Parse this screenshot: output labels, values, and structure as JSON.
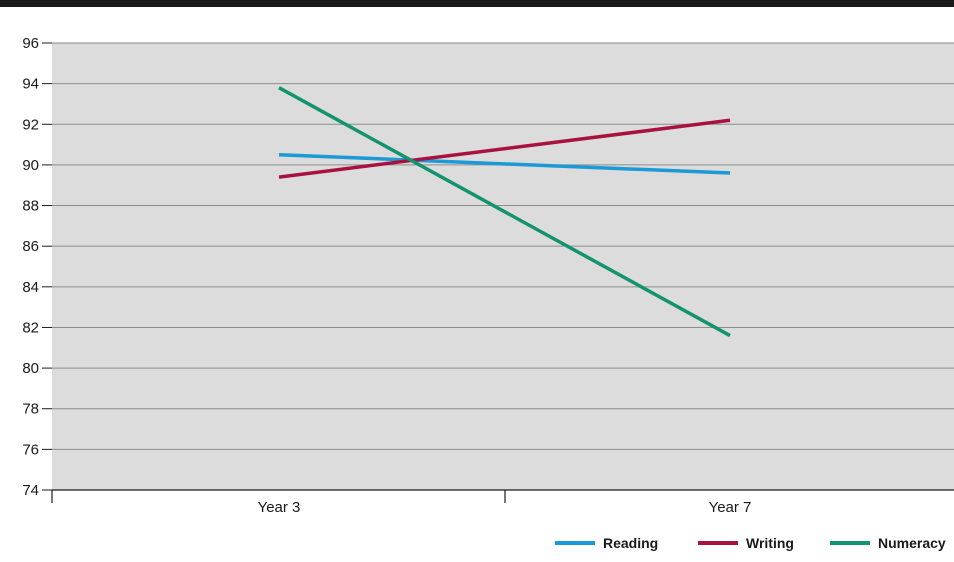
{
  "chart_data": {
    "type": "line",
    "title": "",
    "xlabel": "",
    "ylabel": "",
    "categories": [
      "Year 3",
      "Year 7"
    ],
    "ylim": [
      74,
      96
    ],
    "yticks": [
      "96",
      "94",
      "92",
      "90",
      "88",
      "86",
      "84",
      "82",
      "80",
      "78",
      "76",
      "74"
    ],
    "grid": true,
    "legend_position": "bottom-right",
    "background_color": "#dcdcdc",
    "top_rule_color": "#1a1a1a",
    "series": [
      {
        "name": "Reading",
        "values": [
          90.5,
          89.6
        ],
        "color": "#1a9bd7"
      },
      {
        "name": "Writing",
        "values": [
          89.4,
          92.2
        ],
        "color": "#a8123e"
      },
      {
        "name": "Numeracy",
        "values": [
          93.8,
          81.6
        ],
        "color": "#13936f"
      }
    ]
  }
}
